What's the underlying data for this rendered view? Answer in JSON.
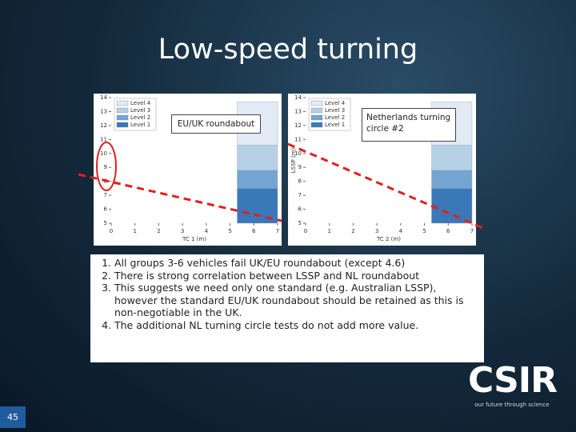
{
  "slide": {
    "title": "Low-speed turning",
    "page_number": "45"
  },
  "charts": [
    {
      "callout": "EU/UK roundabout",
      "x_label": "TC 1 (m)",
      "y_label": null,
      "xlim": [
        0,
        7
      ],
      "ylim": [
        5,
        14
      ],
      "xticks": [
        0,
        1,
        2,
        3,
        4,
        5,
        6,
        7
      ],
      "yticks": [
        5,
        6,
        7,
        8,
        9,
        10,
        11,
        12,
        13,
        14
      ],
      "bands": [
        {
          "name": "Level 1",
          "color": "#3a78b8",
          "x_from": 5.3,
          "from": 5,
          "to": 7.5
        },
        {
          "name": "Level 2",
          "color": "#74a5d2",
          "x_from": 5.3,
          "from": 7.5,
          "to": 8.8
        },
        {
          "name": "Level 3",
          "color": "#b6d0e6",
          "x_from": 5.3,
          "from": 8.8,
          "to": 10.6
        },
        {
          "name": "Level 4",
          "color": "#e2ebf5",
          "x_from": 5.3,
          "from": 10.6,
          "to": 13.7
        }
      ]
    },
    {
      "callout": "Netherlands turning circle #2",
      "x_label": "TC 2 (m)",
      "y_label": "LSSP (m)",
      "xlim": [
        0,
        7
      ],
      "ylim": [
        5,
        14
      ],
      "xticks": [
        0,
        1,
        2,
        3,
        4,
        5,
        6,
        7
      ],
      "yticks": [
        5,
        6,
        7,
        8,
        9,
        10,
        11,
        12,
        13,
        14
      ],
      "bands": [
        {
          "name": "Level 1",
          "color": "#3a78b8",
          "x_from": 5.3,
          "from": 5,
          "to": 7.5
        },
        {
          "name": "Level 2",
          "color": "#74a5d2",
          "x_from": 5.3,
          "from": 7.5,
          "to": 8.8
        },
        {
          "name": "Level 3",
          "color": "#b6d0e6",
          "x_from": 5.3,
          "from": 8.8,
          "to": 10.6
        },
        {
          "name": "Level 4",
          "color": "#e2ebf5",
          "x_from": 5.3,
          "from": 10.6,
          "to": 13.7
        }
      ]
    }
  ],
  "list": [
    "All groups 3-6 vehicles fail UK/EU roundabout (except 4.6)",
    "There is strong correlation between LSSP and NL roundabout",
    "This suggests we need only one standard (e.g. Australian LSSP), however the standard EU/UK roundabout should be retained as this is non-negotiable in the UK.",
    "The additional NL turning circle tests do not add more value."
  ],
  "logo": {
    "name": "CSIR",
    "tagline": "our future through science"
  }
}
